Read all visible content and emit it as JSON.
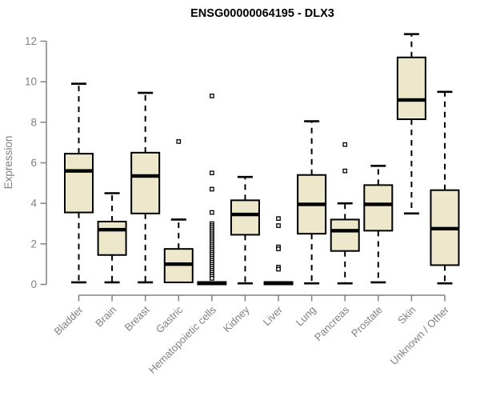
{
  "page": {
    "background": "#ffffff"
  },
  "chart_data": {
    "type": "boxplot",
    "title": "ENSG00000064195 - DLX3",
    "ylabel": "Expression",
    "xlabel": "",
    "ylim": [
      0,
      12
    ],
    "yticks": [
      0,
      2,
      4,
      6,
      8,
      10,
      12
    ],
    "grid": false,
    "legend": "none",
    "categories": [
      "Bladder",
      "Brain",
      "Breast",
      "Gastric",
      "Hematopoietic cells",
      "Kidney",
      "Liver",
      "Lung",
      "Pancreas",
      "Prostate",
      "Skin",
      "Unknown / Other"
    ],
    "series": [
      {
        "name": "Bladder",
        "whisker_low": 0.1,
        "q1": 3.55,
        "median": 5.6,
        "q3": 6.45,
        "whisker_high": 9.9,
        "outliers": []
      },
      {
        "name": "Brain",
        "whisker_low": 0.1,
        "q1": 1.45,
        "median": 2.7,
        "q3": 3.1,
        "whisker_high": 4.5,
        "outliers": []
      },
      {
        "name": "Breast",
        "whisker_low": 0.1,
        "q1": 3.5,
        "median": 5.35,
        "q3": 6.5,
        "whisker_high": 9.45,
        "outliers": []
      },
      {
        "name": "Gastric",
        "whisker_low": 0.1,
        "q1": 0.1,
        "median": 1.0,
        "q3": 1.75,
        "whisker_high": 3.2,
        "outliers": [
          7.05
        ]
      },
      {
        "name": "Hematopoietic cells",
        "whisker_low": 0.0,
        "q1": 0.0,
        "median": 0.06,
        "q3": 0.12,
        "whisker_high": 0.12,
        "outliers": [
          9.3,
          5.5,
          4.7,
          3.55,
          3.0,
          2.9,
          2.8,
          2.7,
          2.6,
          2.5,
          2.4,
          2.3,
          2.2,
          2.1,
          2.0,
          1.9,
          1.8,
          1.7,
          1.6,
          1.5,
          1.4,
          1.3,
          1.2,
          1.1,
          1.0,
          0.9,
          0.8,
          0.7,
          0.6,
          0.5,
          0.4,
          0.3
        ]
      },
      {
        "name": "Kidney",
        "whisker_low": 0.05,
        "q1": 2.45,
        "median": 3.45,
        "q3": 4.15,
        "whisker_high": 5.3,
        "outliers": []
      },
      {
        "name": "Liver",
        "whisker_low": 0.0,
        "q1": 0.0,
        "median": 0.06,
        "q3": 0.12,
        "whisker_high": 0.12,
        "outliers": [
          3.25,
          2.9,
          1.85,
          1.75,
          0.85,
          0.75
        ]
      },
      {
        "name": "Lung",
        "whisker_low": 0.05,
        "q1": 2.5,
        "median": 3.95,
        "q3": 5.4,
        "whisker_high": 8.05,
        "outliers": []
      },
      {
        "name": "Pancreas",
        "whisker_low": 0.05,
        "q1": 1.65,
        "median": 2.65,
        "q3": 3.2,
        "whisker_high": 4.0,
        "outliers": [
          6.9,
          5.6
        ]
      },
      {
        "name": "Prostate",
        "whisker_low": 0.1,
        "q1": 2.65,
        "median": 3.95,
        "q3": 4.9,
        "whisker_high": 5.85,
        "outliers": []
      },
      {
        "name": "Skin",
        "whisker_low": 3.5,
        "q1": 8.15,
        "median": 9.1,
        "q3": 11.2,
        "whisker_high": 12.35,
        "outliers": []
      },
      {
        "name": "Unknown / Other",
        "whisker_low": 0.05,
        "q1": 0.95,
        "median": 2.75,
        "q3": 4.65,
        "whisker_high": 9.5,
        "outliers": []
      }
    ],
    "style": {
      "box_fill": "#EDE7CC",
      "box_border": "#000000",
      "median_color": "#000000",
      "whisker_color": "#000000",
      "outlier_color": "#000000",
      "axis_color": "#808080",
      "tick_label_color": "#808080",
      "title_color": "#000000"
    }
  }
}
